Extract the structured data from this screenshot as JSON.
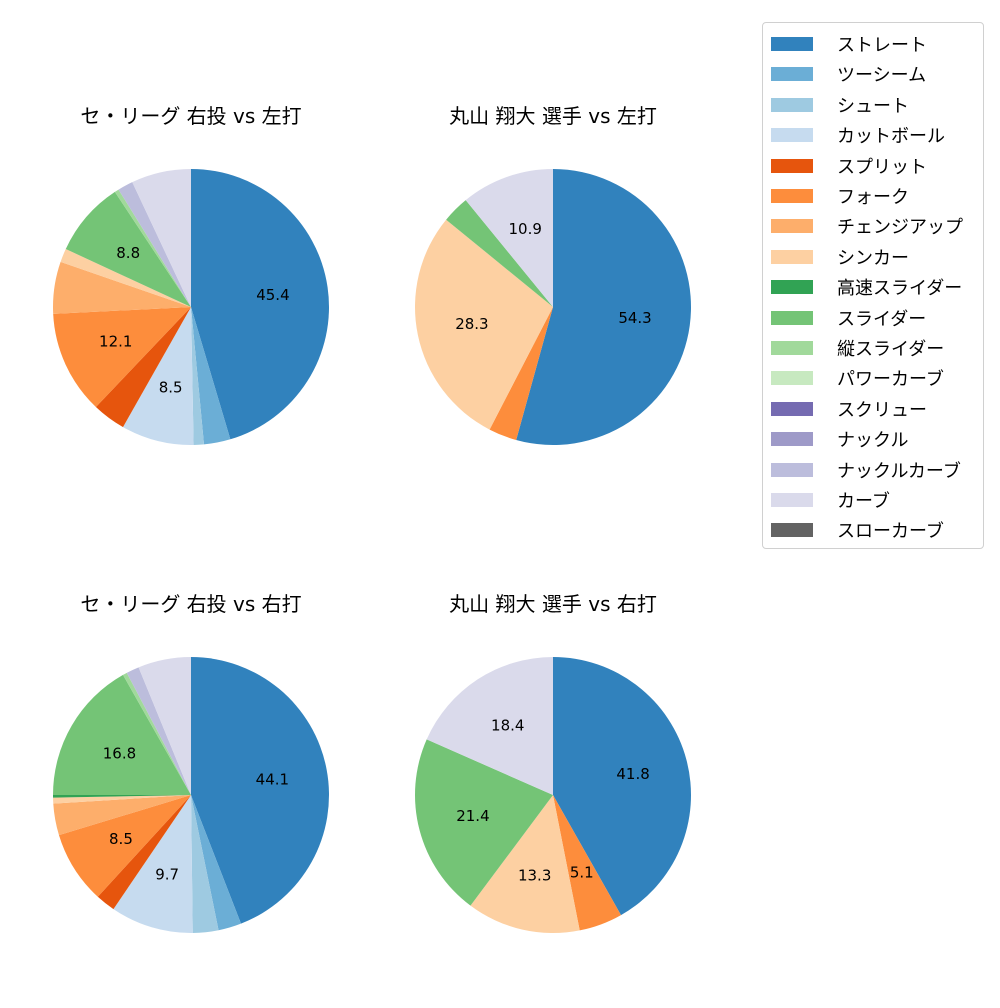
{
  "legend": {
    "items": [
      {
        "label": "ストレート",
        "color": "#3182bd"
      },
      {
        "label": "ツーシーム",
        "color": "#6baed6"
      },
      {
        "label": "シュート",
        "color": "#9ecae1"
      },
      {
        "label": "カットボール",
        "color": "#c6dbef"
      },
      {
        "label": "スプリット",
        "color": "#e6550d"
      },
      {
        "label": "フォーク",
        "color": "#fd8d3c"
      },
      {
        "label": "チェンジアップ",
        "color": "#fdae6b"
      },
      {
        "label": "シンカー",
        "color": "#fdd0a2"
      },
      {
        "label": "高速スライダー",
        "color": "#31a354"
      },
      {
        "label": "スライダー",
        "color": "#74c476"
      },
      {
        "label": "縦スライダー",
        "color": "#a1d99b"
      },
      {
        "label": "パワーカーブ",
        "color": "#c7e9c0"
      },
      {
        "label": "スクリュー",
        "color": "#756bb1"
      },
      {
        "label": "ナックル",
        "color": "#9e9ac8"
      },
      {
        "label": "ナックルカーブ",
        "color": "#bcbddc"
      },
      {
        "label": "カーブ",
        "color": "#dadaeb"
      },
      {
        "label": "スローカーブ",
        "color": "#636363"
      }
    ]
  },
  "chart_data": [
    {
      "type": "pie",
      "title": "セ・リーグ 右投 vs 左打",
      "labels": [
        "ストレート",
        "ツーシーム",
        "シュート",
        "カットボール",
        "スプリット",
        "フォーク",
        "チェンジアップ",
        "シンカー",
        "スライダー",
        "縦スライダー",
        "ナックルカーブ",
        "カーブ"
      ],
      "values": [
        45.4,
        3.1,
        1.2,
        8.5,
        3.9,
        12.1,
        6.1,
        1.6,
        8.8,
        0.5,
        1.8,
        7.0
      ],
      "shown_labels": [
        "45.4",
        "",
        "",
        "8.5",
        "",
        "12.1",
        "",
        "",
        "8.8",
        "",
        "",
        ""
      ],
      "start_angle": 90,
      "direction": "clockwise"
    },
    {
      "type": "pie",
      "title": "丸山 翔大 選手 vs 左打",
      "labels": [
        "ストレート",
        "フォーク",
        "シンカー",
        "スライダー",
        "カーブ"
      ],
      "values": [
        54.3,
        3.3,
        28.3,
        3.2,
        10.9
      ],
      "shown_labels": [
        "54.3",
        "",
        "28.3",
        "",
        "10.9"
      ],
      "start_angle": 90,
      "direction": "clockwise"
    },
    {
      "type": "pie",
      "title": "セ・リーグ 右投 vs 右打",
      "labels": [
        "ストレート",
        "ツーシーム",
        "シュート",
        "カットボール",
        "スプリット",
        "フォーク",
        "チェンジアップ",
        "シンカー",
        "高速スライダー",
        "スライダー",
        "縦スライダー",
        "ナックルカーブ",
        "カーブ"
      ],
      "values": [
        44.1,
        2.7,
        3.0,
        9.7,
        2.3,
        8.5,
        3.7,
        0.7,
        0.3,
        16.8,
        0.5,
        1.5,
        6.2
      ],
      "shown_labels": [
        "44.1",
        "",
        "",
        "9.7",
        "",
        "8.5",
        "",
        "",
        "",
        "16.8",
        "",
        "",
        ""
      ],
      "start_angle": 90,
      "direction": "clockwise"
    },
    {
      "type": "pie",
      "title": "丸山 翔大 選手 vs 右打",
      "labels": [
        "ストレート",
        "フォーク",
        "シンカー",
        "スライダー",
        "カーブ"
      ],
      "values": [
        41.8,
        5.1,
        13.3,
        21.4,
        18.4
      ],
      "shown_labels": [
        "41.8",
        "5.1",
        "13.3",
        "21.4",
        "18.4"
      ],
      "start_angle": 90,
      "direction": "clockwise"
    }
  ]
}
